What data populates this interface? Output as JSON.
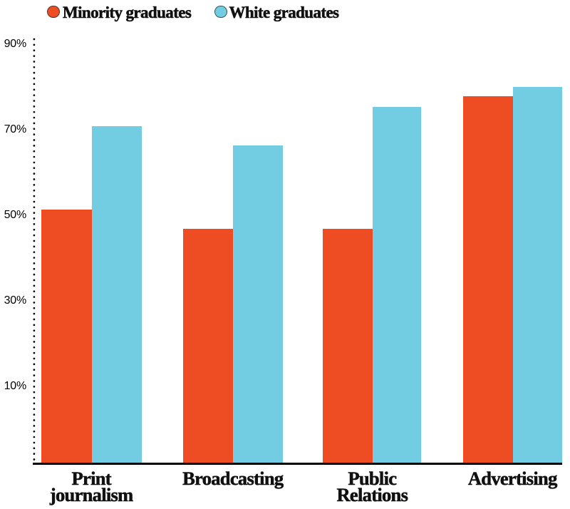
{
  "chart_data": {
    "type": "bar",
    "title": "",
    "xlabel": "",
    "ylabel": "",
    "categories": [
      "Print journalism",
      "Broadcasting",
      "Public Relations",
      "Advertising"
    ],
    "category_label_lines": [
      [
        "Print",
        "journalism"
      ],
      [
        "Broadcasting"
      ],
      [
        "Public",
        "Relations"
      ],
      [
        "Advertising"
      ]
    ],
    "series": [
      {
        "name": "Minority graduates",
        "color": "#ee4c23",
        "values": [
          51,
          46.5,
          46.5,
          77.5
        ]
      },
      {
        "name": "White graduates",
        "color": "#72cde2",
        "values": [
          70.5,
          66,
          75,
          79.7
        ]
      }
    ],
    "unit": "%",
    "y_ticks": [
      {
        "label": "90%",
        "value": 90
      },
      {
        "label": "70%",
        "value": 70
      },
      {
        "label": "50%",
        "value": 50
      },
      {
        "label": "30%",
        "value": 30
      },
      {
        "label": "10%",
        "value": 10
      }
    ],
    "ylim": [
      0,
      95
    ],
    "grid": "off",
    "y_axis_style": "dotted",
    "legend_position": "top-left"
  },
  "colors": {
    "minority": "#ee4c23",
    "white": "#72cde2",
    "axis": "#000000",
    "text": "#111111",
    "background": "#ffffff"
  }
}
